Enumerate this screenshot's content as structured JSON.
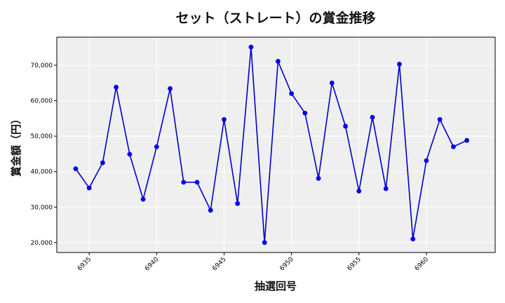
{
  "chart_data": {
    "type": "line",
    "title": "セット（ストレート）の賞金推移",
    "xlabel": "抽選回号",
    "ylabel": "賞金額（円）",
    "x": [
      6934,
      6935,
      6936,
      6937,
      6938,
      6939,
      6940,
      6941,
      6942,
      6943,
      6944,
      6945,
      6946,
      6947,
      6948,
      6949,
      6950,
      6951,
      6952,
      6953,
      6954,
      6955,
      6956,
      6957,
      6958,
      6959,
      6960,
      6961,
      6962,
      6963
    ],
    "y": [
      40800,
      35400,
      42500,
      63800,
      44900,
      32200,
      47000,
      63400,
      37000,
      37000,
      29100,
      54700,
      31000,
      75100,
      20000,
      71100,
      62000,
      56500,
      38100,
      65000,
      52800,
      34500,
      55300,
      35200,
      70300,
      21000,
      43100,
      54700,
      47000,
      48800
    ],
    "xticks": [
      6935,
      6940,
      6945,
      6950,
      6955,
      6960
    ],
    "yticks": [
      20000,
      30000,
      40000,
      50000,
      60000,
      70000
    ],
    "ytick_labels": [
      "20,000",
      "30,000",
      "40,000",
      "50,000",
      "60,000",
      "70,000"
    ],
    "xlim": [
      6932.6,
      6965.1
    ],
    "ylim": [
      17200,
      77900
    ],
    "grid": true,
    "colors": {
      "line": "#0000cc",
      "marker": "#0000ee",
      "plot_bg": "#efefef",
      "grid": "#ffffff"
    }
  }
}
